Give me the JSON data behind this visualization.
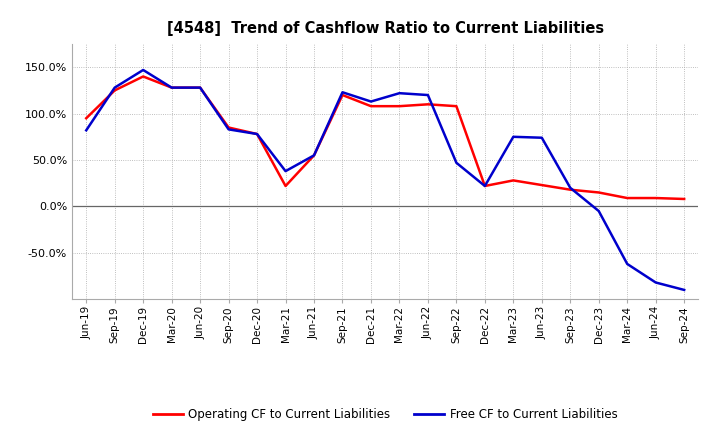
{
  "title": "[4548]  Trend of Cashflow Ratio to Current Liabilities",
  "x_labels": [
    "Jun-19",
    "Sep-19",
    "Dec-19",
    "Mar-20",
    "Jun-20",
    "Sep-20",
    "Dec-20",
    "Mar-21",
    "Jun-21",
    "Sep-21",
    "Dec-21",
    "Mar-22",
    "Jun-22",
    "Sep-22",
    "Dec-22",
    "Mar-23",
    "Jun-23",
    "Sep-23",
    "Dec-23",
    "Mar-24",
    "Jun-24",
    "Sep-24"
  ],
  "operating_cf": [
    95,
    125,
    140,
    128,
    128,
    85,
    78,
    22,
    55,
    120,
    108,
    108,
    110,
    108,
    22,
    28,
    23,
    18,
    15,
    9,
    9,
    8
  ],
  "free_cf": [
    82,
    128,
    147,
    128,
    128,
    83,
    78,
    38,
    55,
    123,
    113,
    122,
    120,
    47,
    22,
    75,
    74,
    20,
    -5,
    -62,
    -82,
    -90
  ],
  "ylim": [
    -100,
    175
  ],
  "yticks": [
    -50,
    0,
    50,
    100,
    150
  ],
  "operating_color": "#ff0000",
  "free_color": "#0000cc",
  "background_color": "#ffffff",
  "grid_color": "#aaaaaa",
  "legend_labels": [
    "Operating CF to Current Liabilities",
    "Free CF to Current Liabilities"
  ]
}
